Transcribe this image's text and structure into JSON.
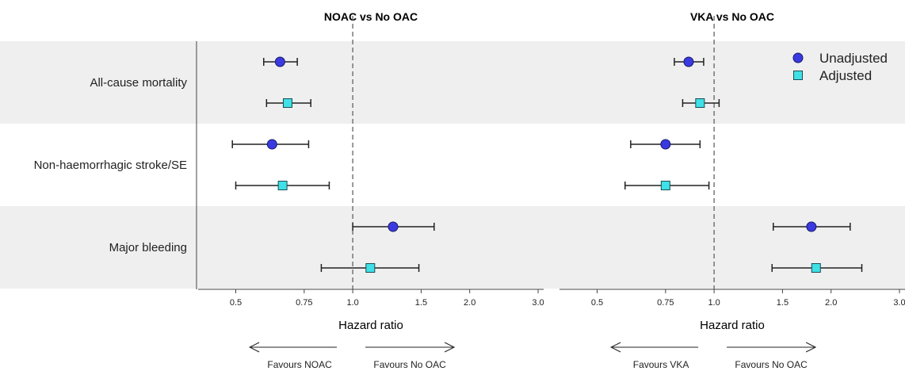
{
  "chart_data": {
    "type": "forest",
    "outcomes": [
      "All-cause mortality",
      "Non-haemorrhagic stroke/SE",
      "Major bleeding"
    ],
    "x_scale": "log",
    "xlim": [
      0.4,
      3.1
    ],
    "x_ticks": [
      0.5,
      0.75,
      1.0,
      1.5,
      2.0,
      3.0
    ],
    "x_tick_labels": [
      "0.5",
      "0.75",
      "1.0",
      "1.5",
      "2.0",
      "3.0"
    ],
    "reference_line": 1.0,
    "xlabel": "Hazard ratio",
    "legend": {
      "position": "top-right",
      "entries": [
        {
          "name": "Unadjusted",
          "marker": "circle",
          "color": "#3a3ae0"
        },
        {
          "name": "Adjusted",
          "marker": "square",
          "color": "#3fe0e6"
        }
      ]
    },
    "band_color": "#efefef",
    "panels": [
      {
        "title": "NOAC vs No OAC",
        "favours_left": "Favours NOAC",
        "favours_right": "Favours No OAC",
        "estimates": [
          {
            "outcome": "All-cause mortality",
            "series": "Unadjusted",
            "hr": 0.65,
            "lo": 0.59,
            "hi": 0.72
          },
          {
            "outcome": "All-cause mortality",
            "series": "Adjusted",
            "hr": 0.68,
            "lo": 0.6,
            "hi": 0.78
          },
          {
            "outcome": "Non-haemorrhagic stroke/SE",
            "series": "Unadjusted",
            "hr": 0.62,
            "lo": 0.49,
            "hi": 0.77
          },
          {
            "outcome": "Non-haemorrhagic stroke/SE",
            "series": "Adjusted",
            "hr": 0.66,
            "lo": 0.5,
            "hi": 0.87
          },
          {
            "outcome": "Major bleeding",
            "series": "Unadjusted",
            "hr": 1.27,
            "lo": 1.0,
            "hi": 1.62
          },
          {
            "outcome": "Major bleeding",
            "series": "Adjusted",
            "hr": 1.11,
            "lo": 0.83,
            "hi": 1.48
          }
        ]
      },
      {
        "title": "VKA vs No OAC",
        "favours_left": "Favours VKA",
        "favours_right": "Favours No OAC",
        "estimates": [
          {
            "outcome": "All-cause mortality",
            "series": "Unadjusted",
            "hr": 0.86,
            "lo": 0.79,
            "hi": 0.94
          },
          {
            "outcome": "All-cause mortality",
            "series": "Adjusted",
            "hr": 0.92,
            "lo": 0.83,
            "hi": 1.03
          },
          {
            "outcome": "Non-haemorrhagic stroke/SE",
            "series": "Unadjusted",
            "hr": 0.75,
            "lo": 0.61,
            "hi": 0.92
          },
          {
            "outcome": "Non-haemorrhagic stroke/SE",
            "series": "Adjusted",
            "hr": 0.75,
            "lo": 0.59,
            "hi": 0.97
          },
          {
            "outcome": "Major bleeding",
            "series": "Unadjusted",
            "hr": 1.78,
            "lo": 1.42,
            "hi": 2.24
          },
          {
            "outcome": "Major bleeding",
            "series": "Adjusted",
            "hr": 1.83,
            "lo": 1.41,
            "hi": 2.4
          }
        ]
      }
    ]
  }
}
